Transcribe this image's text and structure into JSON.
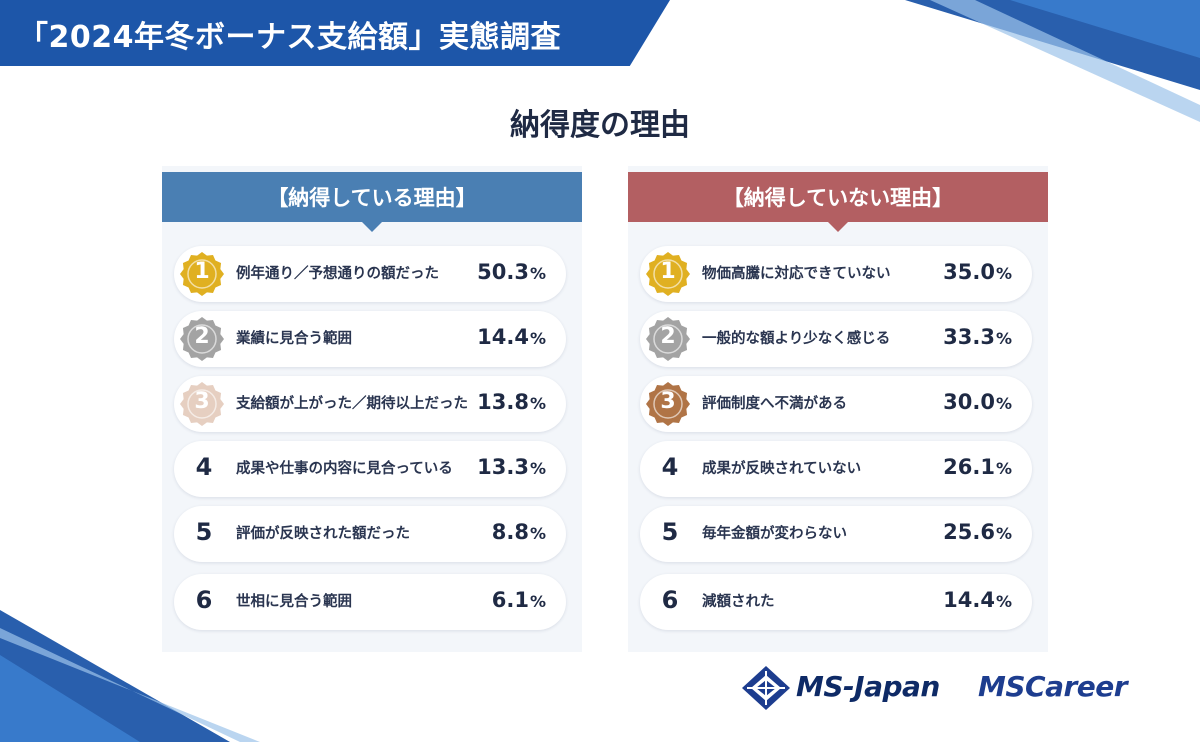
{
  "header": {
    "title": "「2024年冬ボーナス支給額」実態調査",
    "subtitle": "納得度の理由"
  },
  "colors": {
    "brand_blue": "#1d56a9",
    "left_header": "#4a7fb3",
    "right_header": "#b35f62",
    "gold": "#e0b021",
    "silver": "#a3a3a3",
    "bronze_light": "#e6cfc1",
    "bronze": "#b07446"
  },
  "chart_data": [
    {
      "type": "table",
      "title": "【納得している理由】",
      "unit": "%",
      "categories": [
        "例年通り／予想通りの額だった",
        "業績に見合う範囲",
        "支給額が上がった／期待以上だった",
        "成果や仕事の内容に見合っている",
        "評価が反映された額だった",
        "世相に見合う範囲"
      ],
      "ranks": [
        "1",
        "2",
        "3",
        "4",
        "5",
        "6"
      ],
      "values": [
        50.3,
        14.4,
        13.8,
        13.3,
        8.8,
        6.1
      ],
      "value_labels": [
        "50.3",
        "14.4",
        "13.8",
        "13.3",
        "8.8",
        "6.1"
      ],
      "medals": [
        "gold",
        "silver",
        "bronze_light",
        null,
        null,
        null
      ]
    },
    {
      "type": "table",
      "title": "【納得していない理由】",
      "unit": "%",
      "categories": [
        "物価高騰に対応できていない",
        "一般的な額より少なく感じる",
        "評価制度へ不満がある",
        "成果が反映されていない",
        "毎年金額が変わらない",
        "減額された"
      ],
      "ranks": [
        "1",
        "2",
        "3",
        "4",
        "5",
        "6"
      ],
      "values": [
        35.0,
        33.3,
        30.0,
        26.1,
        25.6,
        14.4
      ],
      "value_labels": [
        "35.0",
        "33.3",
        "30.0",
        "26.1",
        "25.6",
        "14.4"
      ],
      "medals": [
        "gold",
        "silver",
        "bronze",
        null,
        null,
        null
      ]
    }
  ],
  "logos": {
    "ms_japan": "MS-Japan",
    "ms_career": "MSCareer"
  }
}
